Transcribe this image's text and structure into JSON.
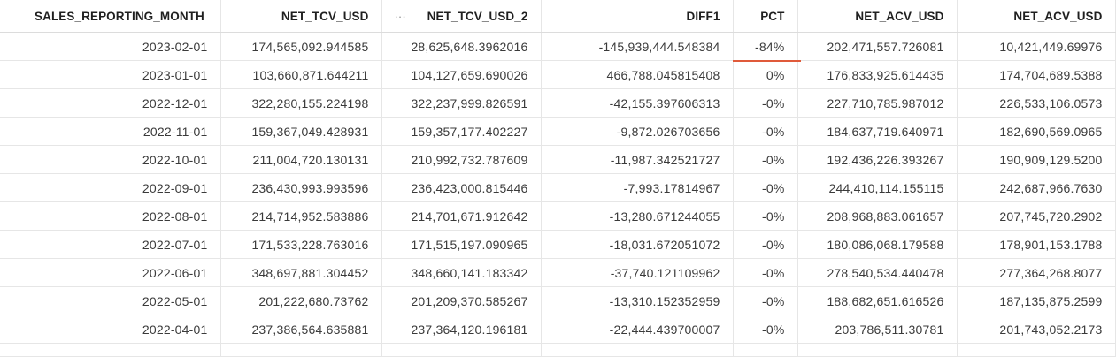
{
  "columns": [
    {
      "key": "month",
      "label": "SALES_REPORTING_MONTH"
    },
    {
      "key": "tcv",
      "label": "NET_TCV_USD"
    },
    {
      "key": "tcv2",
      "label": "NET_TCV_USD_2",
      "menu": "···"
    },
    {
      "key": "diff",
      "label": "DIFF1"
    },
    {
      "key": "pct",
      "label": "PCT"
    },
    {
      "key": "acv",
      "label": "NET_ACV_USD"
    },
    {
      "key": "acv2",
      "label": "NET_ACV_USD"
    }
  ],
  "rows": [
    [
      "2023-02-01",
      "174,565,092.944585",
      "28,625,648.3962016",
      "-145,939,444.548384",
      "-84%",
      "202,471,557.726081",
      "10,421,449.69976"
    ],
    [
      "2023-01-01",
      "103,660,871.644211",
      "104,127,659.690026",
      "466,788.045815408",
      "0%",
      "176,833,925.614435",
      "174,704,689.5388"
    ],
    [
      "2022-12-01",
      "322,280,155.224198",
      "322,237,999.826591",
      "-42,155.397606313",
      "-0%",
      "227,710,785.987012",
      "226,533,106.0573"
    ],
    [
      "2022-11-01",
      "159,367,049.428931",
      "159,357,177.402227",
      "-9,872.026703656",
      "-0%",
      "184,637,719.640971",
      "182,690,569.0965"
    ],
    [
      "2022-10-01",
      "211,004,720.130131",
      "210,992,732.787609",
      "-11,987.342521727",
      "-0%",
      "192,436,226.393267",
      "190,909,129.5200"
    ],
    [
      "2022-09-01",
      "236,430,993.993596",
      "236,423,000.815446",
      "-7,993.17814967",
      "-0%",
      "244,410,114.155115",
      "242,687,966.7630"
    ],
    [
      "2022-08-01",
      "214,714,952.583886",
      "214,701,671.912642",
      "-13,280.671244055",
      "-0%",
      "208,968,883.061657",
      "207,745,720.2902"
    ],
    [
      "2022-07-01",
      "171,533,228.763016",
      "171,515,197.090965",
      "-18,031.672051072",
      "-0%",
      "180,086,068.179588",
      "178,901,153.1788"
    ],
    [
      "2022-06-01",
      "348,697,881.304452",
      "348,660,141.183342",
      "-37,740.121109962",
      "-0%",
      "278,540,534.440478",
      "277,364,268.8077"
    ],
    [
      "2022-05-01",
      "201,222,680.73762",
      "201,209,370.585267",
      "-13,310.152352959",
      "-0%",
      "188,682,651.616526",
      "187,135,875.2599"
    ],
    [
      "2022-04-01",
      "237,386,564.635881",
      "237,364,120.196181",
      "-22,444.439700007",
      "-0%",
      "203,786,511.30781",
      "201,743,052.2173"
    ]
  ]
}
